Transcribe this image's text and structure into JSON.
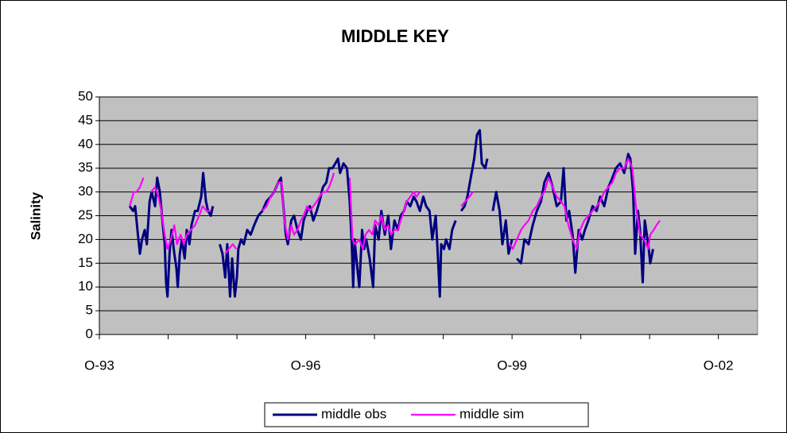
{
  "chart_data": {
    "type": "line",
    "title": "MIDDLE KEY",
    "y_label": "Salinity",
    "xlim": [
      1993.75,
      2003.32
    ],
    "xticks": [
      {
        "value": 1993.75,
        "label": "O-93"
      },
      {
        "value": 1996.75,
        "label": "O-96"
      },
      {
        "value": 1999.75,
        "label": "O-99"
      },
      {
        "value": 2002.75,
        "label": "O-02"
      }
    ],
    "x_minor_ticks": [
      1994.75,
      1995.75,
      1997.75,
      1998.75,
      2000.75,
      2001.75
    ],
    "ylim": [
      0,
      50
    ],
    "yticks": [
      0,
      5,
      10,
      15,
      20,
      25,
      30,
      35,
      40,
      45,
      50
    ],
    "grid": true,
    "legend": "bottom",
    "series": [
      {
        "name": "middle obs",
        "color": "#000080",
        "x": [
          1994.19,
          1994.24,
          1994.27,
          1994.31,
          1994.34,
          1994.37,
          1994.41,
          1994.44,
          1994.48,
          1994.51,
          1994.56,
          1994.59,
          1994.63,
          1994.66,
          1994.7,
          1994.72,
          1994.74,
          1994.77,
          1994.8,
          1994.84,
          1994.87,
          1994.89,
          1994.92,
          1994.95,
          1994.99,
          1995.02,
          1995.06,
          1995.09,
          1995.14,
          1995.18,
          1995.23,
          1995.26,
          1995.3,
          1995.33,
          1995.37,
          1995.4,
          1995.45,
          1995.5,
          1995.54,
          1995.58,
          1995.61,
          1995.65,
          1995.68,
          1995.72,
          1995.75,
          1995.77,
          1995.81,
          1995.85,
          1995.9,
          1995.95,
          1996.0,
          1996.06,
          1996.12,
          1996.18,
          1996.24,
          1996.29,
          1996.35,
          1996.39,
          1996.42,
          1996.46,
          1996.49,
          1996.54,
          1996.58,
          1996.63,
          1996.68,
          1996.72,
          1996.77,
          1996.81,
          1996.86,
          1996.91,
          1996.95,
          1997.0,
          1997.05,
          1997.09,
          1997.14,
          1997.18,
          1997.22,
          1997.25,
          1997.3,
          1997.35,
          1997.39,
          1997.42,
          1997.44,
          1997.46,
          1997.5,
          1997.53,
          1997.57,
          1997.6,
          1997.63,
          1997.68,
          1997.73,
          1997.76,
          1997.81,
          1997.85,
          1997.9,
          1997.95,
          1997.99,
          1998.04,
          1998.09,
          1998.13,
          1998.18,
          1998.22,
          1998.27,
          1998.32,
          1998.36,
          1998.41,
          1998.46,
          1998.5,
          1998.55,
          1998.59,
          1998.64,
          1998.67,
          1998.7,
          1998.72,
          1998.76,
          1998.79,
          1998.84,
          1998.88,
          1998.93,
          1998.96,
          1999.01,
          1999.06,
          1999.1,
          1999.15,
          1999.2,
          1999.24,
          1999.28,
          1999.31,
          1999.36,
          1999.39,
          1999.43,
          1999.47,
          1999.52,
          1999.57,
          1999.61,
          1999.66,
          1999.7,
          1999.75,
          1999.78,
          1999.82,
          1999.88,
          1999.93,
          1999.99,
          2000.05,
          2000.11,
          2000.17,
          2000.22,
          2000.28,
          2000.34,
          2000.4,
          2000.46,
          2000.5,
          2000.54,
          2000.58,
          2000.63,
          2000.67,
          2000.72,
          2000.77,
          2000.81,
          2000.86,
          2000.92,
          2000.98,
          2001.03,
          2001.09,
          2001.15,
          2001.21,
          2001.26,
          2001.32,
          2001.38,
          2001.44,
          2001.47,
          2001.51,
          2001.54,
          2001.58,
          2001.61,
          2001.65,
          2001.68,
          2001.73,
          2001.76,
          2001.8
        ],
        "values": [
          27,
          26,
          27,
          21,
          17,
          20,
          22,
          19,
          28,
          30,
          27,
          33,
          30,
          25,
          19,
          11,
          8,
          17,
          22,
          17,
          14,
          10,
          17,
          20,
          16,
          22,
          19,
          23,
          26,
          26,
          29,
          34,
          28,
          26,
          25,
          27,
          null,
          19,
          17,
          12,
          19,
          8,
          16,
          8,
          12,
          18,
          20,
          19,
          22,
          21,
          23,
          25,
          26,
          28,
          29,
          30,
          32,
          33,
          28,
          21,
          19,
          24,
          25,
          22,
          20,
          24,
          26,
          27,
          24,
          26,
          28,
          31,
          32,
          35,
          35,
          36,
          37,
          34,
          36,
          35,
          28,
          19,
          10,
          20,
          14,
          10,
          22,
          18,
          20,
          16,
          10,
          23,
          20,
          26,
          21,
          25,
          18,
          24,
          22,
          25,
          26,
          28,
          27,
          29,
          28,
          26,
          29,
          27,
          26,
          20,
          25,
          17,
          8,
          19,
          18,
          20,
          18,
          22,
          24,
          null,
          26,
          27,
          29,
          33,
          37,
          42,
          43,
          36,
          35,
          37,
          null,
          26,
          30,
          26,
          19,
          24,
          17,
          20,
          null,
          16,
          15,
          20,
          19,
          23,
          26,
          28,
          32,
          34,
          31,
          27,
          28,
          35,
          24,
          26,
          21,
          13,
          22,
          20,
          22,
          24,
          27,
          26,
          29,
          27,
          31,
          33,
          35,
          36,
          34,
          38,
          37,
          30,
          17,
          26,
          22,
          11,
          24,
          19,
          15,
          18
        ]
      },
      {
        "name": "middle sim",
        "color": "#ff00ff",
        "x": [
          1994.19,
          1994.25,
          1994.29,
          1994.34,
          1994.39,
          1994.44,
          1994.5,
          1994.56,
          1994.61,
          1994.65,
          1994.7,
          1994.74,
          1994.79,
          1994.84,
          1994.88,
          1994.93,
          1994.98,
          1995.02,
          1995.08,
          1995.14,
          1995.2,
          1995.25,
          1995.31,
          1995.37,
          1995.47,
          1995.58,
          1995.63,
          1995.69,
          1995.74,
          1995.92,
          1996.12,
          1996.18,
          1996.24,
          1996.29,
          1996.35,
          1996.4,
          1996.44,
          1996.49,
          1996.54,
          1996.58,
          1996.63,
          1996.68,
          1996.72,
          1996.77,
          1996.81,
          1996.86,
          1996.91,
          1996.95,
          1997.0,
          1997.05,
          1997.09,
          1997.14,
          1997.16,
          1997.28,
          1997.39,
          1997.43,
          1997.47,
          1997.53,
          1997.58,
          1997.62,
          1997.67,
          1997.72,
          1997.76,
          1997.81,
          1997.85,
          1997.9,
          1997.95,
          1997.99,
          1998.04,
          1998.09,
          1998.13,
          1998.18,
          1998.22,
          1998.27,
          1998.32,
          1998.36,
          1998.41,
          1998.71,
          1999.01,
          1999.07,
          1999.13,
          1999.18,
          1999.45,
          1999.72,
          1999.76,
          1999.82,
          1999.88,
          1999.93,
          1999.99,
          2000.05,
          2000.11,
          2000.17,
          2000.22,
          2000.28,
          2000.34,
          2000.4,
          2000.46,
          2000.51,
          2000.57,
          2000.63,
          2000.69,
          2000.74,
          2000.8,
          2000.86,
          2000.92,
          2000.98,
          2001.03,
          2001.09,
          2001.15,
          2001.21,
          2001.26,
          2001.32,
          2001.38,
          2001.44,
          2001.5,
          2001.55,
          2001.61,
          2001.67,
          2001.73,
          2001.76,
          2001.81,
          2001.85,
          2001.9
        ],
        "values": [
          27,
          30,
          30,
          31,
          33,
          null,
          30,
          31,
          29,
          26,
          21,
          18,
          20,
          23,
          19,
          21,
          19,
          21,
          22,
          23,
          25,
          27,
          26,
          26,
          null,
          17,
          18,
          19,
          18,
          null,
          26,
          27,
          29,
          30,
          32,
          32,
          24,
          20,
          23,
          21,
          22,
          24,
          25,
          27,
          26,
          27,
          28,
          29,
          30,
          30,
          31,
          33,
          34,
          null,
          33,
          20,
          19,
          20,
          18,
          21,
          22,
          21,
          24,
          23,
          25,
          22,
          23,
          21,
          22,
          22,
          24,
          26,
          28,
          29,
          30,
          29,
          30,
          null,
          27,
          28,
          29,
          30,
          null,
          19,
          18,
          20,
          22,
          23,
          24,
          26,
          27,
          29,
          30,
          33,
          31,
          29,
          28,
          27,
          23,
          20,
          18,
          22,
          24,
          25,
          26,
          27,
          28,
          30,
          31,
          32,
          34,
          35,
          35,
          37,
          35,
          27,
          21,
          20,
          18,
          21,
          22,
          23,
          24
        ]
      }
    ]
  }
}
